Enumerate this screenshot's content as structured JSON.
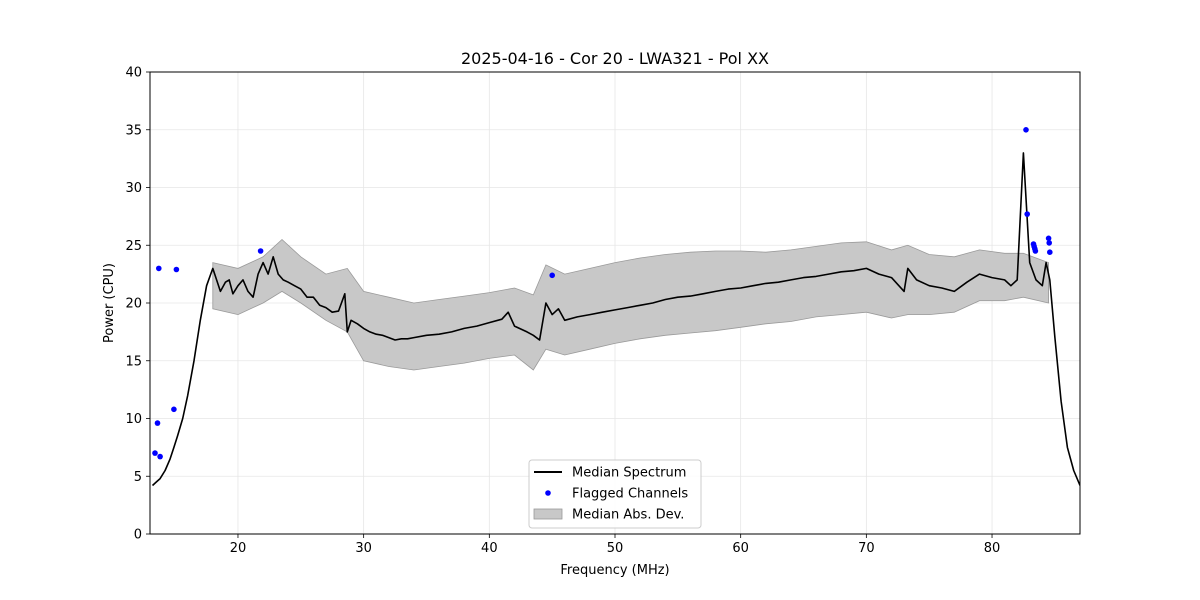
{
  "chart_data": {
    "type": "line",
    "title": "2025-04-16 - Cor 20 - LWA321 - Pol XX",
    "xlabel": "Frequency (MHz)",
    "ylabel": "Power (CPU)",
    "xlim": [
      13,
      87
    ],
    "ylim": [
      0,
      40
    ],
    "xticks": [
      20,
      30,
      40,
      50,
      60,
      70,
      80
    ],
    "yticks": [
      0,
      5,
      10,
      15,
      20,
      25,
      30,
      35,
      40
    ],
    "grid": true,
    "legend": {
      "position": "bottom-center",
      "entries": [
        "Median Spectrum",
        "Flagged Channels",
        "Median Abs. Dev."
      ]
    },
    "series": [
      {
        "name": "Median Spectrum",
        "color": "#000000",
        "x": [
          13.2,
          13.5,
          13.8,
          14.2,
          14.6,
          14.9,
          15.2,
          15.6,
          16.0,
          16.5,
          17.0,
          17.5,
          18.0,
          18.3,
          18.6,
          19.0,
          19.3,
          19.6,
          20.0,
          20.4,
          20.8,
          21.2,
          21.6,
          22.0,
          22.4,
          22.8,
          23.2,
          23.6,
          24.0,
          24.5,
          25.0,
          25.5,
          26.0,
          26.5,
          27.0,
          27.5,
          28.0,
          28.5,
          28.7,
          29.0,
          29.5,
          30.0,
          30.5,
          31.0,
          31.5,
          32.0,
          32.5,
          33.0,
          33.5,
          34.0,
          35.0,
          36.0,
          37.0,
          38.0,
          39.0,
          40.0,
          41.0,
          41.5,
          42.0,
          43.0,
          43.5,
          44.0,
          44.5,
          45.0,
          45.5,
          46.0,
          47.0,
          48.0,
          49.0,
          50.0,
          51.0,
          52.0,
          53.0,
          54.0,
          55.0,
          56.0,
          57.0,
          58.0,
          59.0,
          60.0,
          61.0,
          62.0,
          63.0,
          64.0,
          65.0,
          66.0,
          67.0,
          68.0,
          69.0,
          70.0,
          71.0,
          72.0,
          73.0,
          73.3,
          74.0,
          75.0,
          76.0,
          77.0,
          78.0,
          79.0,
          80.0,
          81.0,
          81.5,
          82.0,
          82.5,
          83.0,
          83.5,
          84.0,
          84.3,
          84.6,
          85.0,
          85.5,
          86.0,
          86.5,
          87.0
        ],
        "values": [
          4.2,
          4.5,
          4.8,
          5.5,
          6.5,
          7.5,
          8.5,
          10.0,
          12.0,
          15.0,
          18.5,
          21.5,
          23.0,
          22.0,
          21.0,
          21.8,
          22.0,
          20.8,
          21.5,
          22.0,
          21.0,
          20.5,
          22.5,
          23.5,
          22.5,
          24.0,
          22.5,
          22.0,
          21.8,
          21.5,
          21.2,
          20.5,
          20.5,
          19.8,
          19.6,
          19.2,
          19.3,
          20.8,
          17.5,
          18.5,
          18.2,
          17.8,
          17.5,
          17.3,
          17.2,
          17.0,
          16.8,
          16.9,
          16.9,
          17.0,
          17.2,
          17.3,
          17.5,
          17.8,
          18.0,
          18.3,
          18.6,
          19.2,
          18.0,
          17.5,
          17.2,
          16.8,
          20.0,
          19.0,
          19.5,
          18.5,
          18.8,
          19.0,
          19.2,
          19.4,
          19.6,
          19.8,
          20.0,
          20.3,
          20.5,
          20.6,
          20.8,
          21.0,
          21.2,
          21.3,
          21.5,
          21.7,
          21.8,
          22.0,
          22.2,
          22.3,
          22.5,
          22.7,
          22.8,
          23.0,
          22.5,
          22.2,
          21.0,
          23.0,
          22.0,
          21.5,
          21.3,
          21.0,
          21.8,
          22.5,
          22.2,
          22.0,
          21.5,
          22.0,
          33.0,
          23.5,
          22.0,
          21.5,
          23.5,
          22.0,
          17.0,
          11.5,
          7.5,
          5.5,
          4.2
        ]
      },
      {
        "name": "Median Abs. Dev.",
        "color": "#c8c8c8",
        "x": [
          18.0,
          20.0,
          22.0,
          23.5,
          25.0,
          27.0,
          28.7,
          30.0,
          32.0,
          34.0,
          36.0,
          38.0,
          40.0,
          42.0,
          43.5,
          44.5,
          46.0,
          48.0,
          50.0,
          52.0,
          54.0,
          56.0,
          58.0,
          60.0,
          62.0,
          64.0,
          66.0,
          68.0,
          70.0,
          72.0,
          73.3,
          75.0,
          77.0,
          79.0,
          81.0,
          82.5,
          84.5
        ],
        "upper": [
          23.5,
          23.0,
          24.0,
          25.5,
          24.0,
          22.5,
          23.0,
          21.0,
          20.5,
          20.0,
          20.3,
          20.6,
          20.9,
          21.3,
          20.7,
          23.3,
          22.5,
          23.0,
          23.5,
          23.9,
          24.2,
          24.4,
          24.5,
          24.5,
          24.4,
          24.6,
          24.9,
          25.2,
          25.3,
          24.6,
          25.0,
          24.2,
          24.0,
          24.6,
          24.3,
          24.3,
          23.5
        ],
        "lower": [
          19.5,
          19.0,
          20.0,
          21.0,
          20.0,
          18.5,
          17.5,
          15.0,
          14.5,
          14.2,
          14.5,
          14.8,
          15.2,
          15.5,
          14.2,
          16.0,
          15.5,
          16.0,
          16.5,
          16.9,
          17.2,
          17.4,
          17.6,
          17.9,
          18.2,
          18.4,
          18.8,
          19.0,
          19.2,
          18.7,
          19.0,
          19.0,
          19.2,
          20.2,
          20.2,
          20.5,
          20.0
        ]
      },
      {
        "name": "Flagged Channels",
        "color": "#0000ff",
        "x": [
          13.4,
          13.6,
          13.7,
          13.8,
          14.9,
          15.1,
          21.8,
          45.0,
          82.7,
          82.8,
          83.3,
          83.35,
          83.4,
          83.45,
          84.5,
          84.55,
          84.6
        ],
        "values": [
          7.0,
          9.6,
          23.0,
          6.7,
          10.8,
          22.9,
          24.5,
          22.4,
          35.0,
          27.7,
          25.1,
          24.9,
          24.7,
          24.5,
          25.6,
          25.2,
          24.4
        ]
      }
    ]
  }
}
